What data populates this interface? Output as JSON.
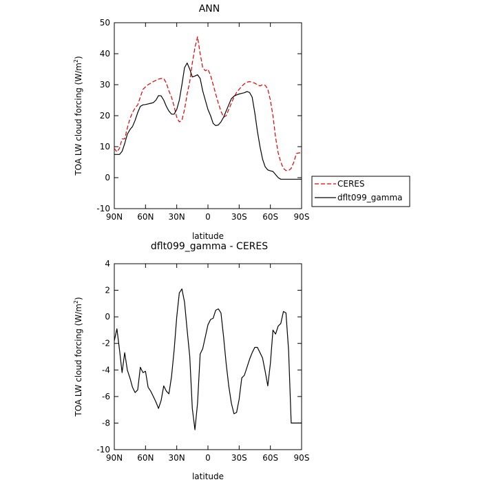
{
  "chart_data": [
    {
      "type": "line",
      "title": "ANN",
      "xlabel": "latitude",
      "ylabel": "TOA LW cloud forcing (W/m",
      "ylabel_sup": "2",
      "ylabel_end": ")",
      "xlim": [
        90,
        -90
      ],
      "ylim": [
        -10,
        50
      ],
      "xticks": [
        90,
        60,
        30,
        0,
        -30,
        -60,
        -90
      ],
      "xtick_labels": [
        "90N",
        "60N",
        "30N",
        "0",
        "30S",
        "60S",
        "90S"
      ],
      "yticks": [
        -10,
        0,
        10,
        20,
        30,
        40,
        50
      ],
      "ytick_labels": [
        "-10",
        "0",
        "10",
        "20",
        "30",
        "40",
        "50"
      ],
      "legend": {
        "placement": "outside-right",
        "entries": [
          "CERES",
          "dflt099_gamma"
        ]
      },
      "series": [
        {
          "name": "CERES",
          "color": "#e00000",
          "dash": "dashed",
          "x": [
            90,
            87.5,
            85,
            82.5,
            80,
            77.5,
            75,
            72.5,
            70,
            67.5,
            65,
            62.5,
            60,
            57.5,
            55,
            52.5,
            50,
            47.5,
            45,
            42.5,
            40,
            37.5,
            35,
            32.5,
            30,
            27.5,
            25,
            22.5,
            20,
            17.5,
            15,
            12.5,
            10,
            7.5,
            5,
            2.5,
            0,
            -2.5,
            -5,
            -7.5,
            -10,
            -12.5,
            -15,
            -17.5,
            -20,
            -22.5,
            -25,
            -27.5,
            -30,
            -32.5,
            -35,
            -37.5,
            -40,
            -42.5,
            -45,
            -47.5,
            -50,
            -52.5,
            -55,
            -57.5,
            -60,
            -62.5,
            -65,
            -67.5,
            -70,
            -72.5,
            -75,
            -77.5,
            -80,
            -82.5,
            -85,
            -87.5,
            -90
          ],
          "values": [
            9.5,
            8.3,
            9.5,
            12.5,
            12.5,
            16,
            19,
            21,
            22.5,
            23.5,
            26,
            28.5,
            29.3,
            30,
            30.5,
            31,
            31.4,
            31.8,
            32,
            32,
            30.5,
            28,
            26,
            23,
            19.5,
            18,
            18.5,
            22,
            27,
            31,
            37,
            42,
            45.5,
            40,
            35.5,
            34.5,
            35,
            33,
            30,
            27,
            24,
            21.5,
            19.5,
            20,
            22,
            24,
            26,
            27.5,
            28.5,
            29.5,
            30.3,
            30.8,
            31,
            30.8,
            30.5,
            30,
            29.6,
            30,
            29.8,
            28.6,
            25,
            20,
            13,
            8,
            5,
            3,
            2.3,
            2.3,
            3,
            5,
            7.8,
            8,
            8
          ]
        },
        {
          "name": "dflt099_gamma",
          "color": "#000000",
          "dash": "solid",
          "x": [
            90,
            87.5,
            85,
            82.5,
            80,
            77.5,
            75,
            72.5,
            70,
            67.5,
            65,
            62.5,
            60,
            57.5,
            55,
            52.5,
            50,
            47.5,
            45,
            42.5,
            40,
            37.5,
            35,
            32.5,
            30,
            27.5,
            25,
            22.5,
            20,
            17.5,
            15,
            12.5,
            10,
            7.5,
            5,
            2.5,
            0,
            -2.5,
            -5,
            -7.5,
            -10,
            -12.5,
            -15,
            -17.5,
            -20,
            -22.5,
            -25,
            -27.5,
            -30,
            -32.5,
            -35,
            -37.5,
            -40,
            -42.5,
            -45,
            -47.5,
            -50,
            -52.5,
            -55,
            -57.5,
            -60,
            -62.5,
            -65,
            -67.5,
            -70,
            -72.5,
            -75,
            -77.5,
            -80,
            -82.5,
            -85,
            -87.5,
            -90
          ],
          "values": [
            7.5,
            7.5,
            7.5,
            8.5,
            11,
            14,
            15.5,
            16.5,
            18.5,
            21,
            23,
            23.5,
            23.6,
            23.8,
            24,
            24.2,
            25,
            26.5,
            26.4,
            25,
            23,
            21.5,
            20.5,
            20.5,
            22,
            25,
            30,
            35.5,
            37,
            35,
            32.5,
            32.8,
            33.2,
            32,
            28,
            25,
            22,
            20,
            17.5,
            16.8,
            17,
            18,
            19.5,
            21.5,
            23.5,
            25.5,
            26.3,
            26.7,
            27,
            27.2,
            27.4,
            27.8,
            27.5,
            26,
            21,
            15,
            10,
            6,
            3.5,
            2.5,
            2.2,
            2,
            1,
            0,
            -0.5,
            -0.5,
            -0.5,
            -0.5,
            -0.5,
            -0.5,
            -0.5,
            -0.5,
            -0.5
          ]
        }
      ]
    },
    {
      "type": "line",
      "title": "dflt099_gamma - CERES",
      "xlabel": "latitude",
      "ylabel": "TOA LW cloud forcing (W/m",
      "ylabel_sup": "2",
      "ylabel_end": ")",
      "xlim": [
        90,
        -90
      ],
      "ylim": [
        -10,
        4
      ],
      "xticks": [
        90,
        60,
        30,
        0,
        -30,
        -60,
        -90
      ],
      "xtick_labels": [
        "90N",
        "60N",
        "30N",
        "0",
        "30S",
        "60S",
        "90S"
      ],
      "yticks": [
        -10,
        -8,
        -6,
        -4,
        -2,
        0,
        2,
        4
      ],
      "ytick_labels": [
        "-10",
        "-8",
        "-6",
        "-4",
        "-2",
        "0",
        "2",
        "4"
      ],
      "series": [
        {
          "color": "#000000",
          "dash": "solid",
          "x": [
            90,
            87.5,
            85,
            82.5,
            80,
            77.5,
            75,
            72.5,
            70,
            67.5,
            65,
            62.5,
            60,
            57.5,
            55,
            52.5,
            50,
            47.5,
            45,
            42.5,
            40,
            37.5,
            35,
            32.5,
            30,
            27.5,
            25,
            22.5,
            20,
            17.5,
            15,
            12.5,
            10,
            7.5,
            5,
            2.5,
            0,
            -2.5,
            -5,
            -7.5,
            -10,
            -12.5,
            -15,
            -17.5,
            -20,
            -22.5,
            -25,
            -27.5,
            -30,
            -32.5,
            -35,
            -37.5,
            -40,
            -42.5,
            -45,
            -47.5,
            -50,
            -52.5,
            -55,
            -57.5,
            -60,
            -62.5,
            -65,
            -67.5,
            -70,
            -72.5,
            -75,
            -77.5,
            -80,
            -82.5,
            -85,
            -87.5,
            -90
          ],
          "values": [
            -1.8,
            -0.9,
            -2.5,
            -4.2,
            -2.7,
            -4,
            -4.6,
            -5.3,
            -5.7,
            -5.5,
            -3.8,
            -4.2,
            -4.1,
            -5.3,
            -5.6,
            -6,
            -6.4,
            -6.9,
            -6.3,
            -5.2,
            -5.6,
            -5.8,
            -4.5,
            -2.5,
            0,
            1.8,
            2.1,
            1.1,
            -1,
            -3,
            -6.9,
            -8.5,
            -6.5,
            -2.8,
            -2.4,
            -1.5,
            -0.6,
            -0.2,
            -0.1,
            0.5,
            0.6,
            0.3,
            -1.5,
            -3.5,
            -5.2,
            -6.5,
            -7.3,
            -7.2,
            -6.2,
            -4.6,
            -4.4,
            -3.8,
            -3.2,
            -2.7,
            -2.3,
            -2.3,
            -2.7,
            -3.1,
            -4.1,
            -5.2,
            -3.5,
            -1,
            -1.3,
            -0.7,
            -0.5,
            0.4,
            0.3,
            -2.5,
            -8,
            -8,
            -8,
            -8,
            -8
          ]
        }
      ]
    }
  ]
}
